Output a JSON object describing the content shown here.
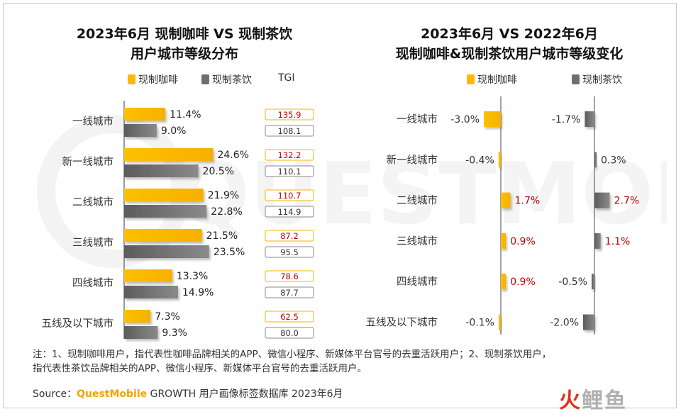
{
  "left_title": [
    "2023年6月 现制咖啡 VS 现制茶饮",
    "用户城市等级分布"
  ],
  "right_title": [
    "2023年6月 VS 2022年6月",
    "现制咖啡&现制茶饮用户城市等级变化"
  ],
  "legend": {
    "coffee": "现制咖啡",
    "tea": "现制茶饮",
    "tgi": "TGI"
  },
  "colors": {
    "coffee": "#fbb900",
    "tea": "#6f6f6f",
    "tgi_coffee_border": "#f5b400",
    "tgi_tea_border": "#888888",
    "up": "#c00000",
    "down": "#333333"
  },
  "chart_data": [
    {
      "type": "bar",
      "orientation": "horizontal",
      "title": "2023年6月 现制咖啡 VS 现制茶饮 用户城市等级分布",
      "categories": [
        "一线城市",
        "新一线城市",
        "二线城市",
        "三线城市",
        "四线城市",
        "五线及以下城市"
      ],
      "series": [
        {
          "name": "现制咖啡",
          "values": [
            11.4,
            24.6,
            21.9,
            21.5,
            13.3,
            7.3
          ],
          "labels": [
            "11.4%",
            "24.6%",
            "21.9%",
            "21.5%",
            "13.3%",
            "7.3%"
          ],
          "tgi": [
            "135.9",
            "132.2",
            "110.7",
            "87.2",
            "78.6",
            "62.5"
          ]
        },
        {
          "name": "现制茶饮",
          "values": [
            9.0,
            20.5,
            22.8,
            23.5,
            14.9,
            9.3
          ],
          "labels": [
            "9.0%",
            "20.5%",
            "22.8%",
            "23.5%",
            "14.9%",
            "9.3%"
          ],
          "tgi": [
            "108.1",
            "110.1",
            "114.9",
            "95.5",
            "87.7",
            "80.0"
          ]
        }
      ]
    },
    {
      "type": "bar",
      "orientation": "horizontal",
      "title": "2023年6月 VS 2022年6月 现制咖啡&现制茶饮用户城市等级变化",
      "categories": [
        "一线城市",
        "新一线城市",
        "二线城市",
        "三线城市",
        "四线城市",
        "五线及以下城市"
      ],
      "series": [
        {
          "name": "现制咖啡",
          "values": [
            -3.0,
            -0.4,
            1.7,
            0.9,
            0.9,
            -0.1
          ],
          "labels": [
            "-3.0%",
            "-0.4%",
            "1.7%",
            "0.9%",
            "0.9%",
            "-0.1%"
          ]
        },
        {
          "name": "现制茶饮",
          "values": [
            -1.7,
            0.3,
            2.7,
            1.1,
            -0.5,
            -2.0
          ],
          "labels": [
            "-1.7%",
            "0.3%",
            "2.7%",
            "1.1%",
            "-0.5%",
            "-2.0%"
          ]
        }
      ]
    }
  ],
  "note": [
    "注：1、现制咖啡用户，指代表性咖啡品牌相关的APP、微信小程序、新媒体平台官号的去重活跃用户；2、现制茶饮用户，",
    "指代表性茶饮品牌相关的APP、微信小程序、新媒体平台官号的去重活跃用户。"
  ],
  "source": {
    "prefix": "Source：",
    "brand": "QuestMobile",
    "rest": " GROWTH 用户画像标签数据库 2023年6月"
  },
  "watermark": "QUESTMOBILE",
  "logo": {
    "char1": "火",
    "char2": "鲤",
    "char3": "鱼"
  }
}
